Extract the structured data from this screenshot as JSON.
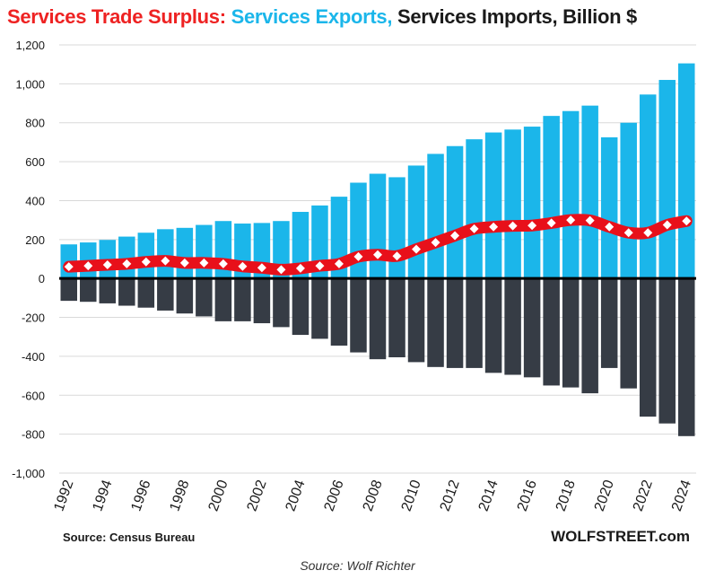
{
  "title": {
    "part1": "Services Trade Surplus: ",
    "part2": "Services Exports, ",
    "part3": "Services Imports, Billion $"
  },
  "source_label": "Source: Census Bureau",
  "brand": "WOLFSTREET.com",
  "caption": "Source: Wolf Richter",
  "colors": {
    "exports": "#1bb6ea",
    "imports": "#363c45",
    "surplus": "#e8101a",
    "marker": "#ffffff"
  },
  "chart_data": {
    "type": "bar",
    "title": "Services Trade Surplus: Services Exports, Services Imports, Billion $",
    "x": [
      1992,
      1993,
      1994,
      1995,
      1996,
      1997,
      1998,
      1999,
      2000,
      2001,
      2002,
      2003,
      2004,
      2005,
      2006,
      2007,
      2008,
      2009,
      2010,
      2011,
      2012,
      2013,
      2014,
      2015,
      2016,
      2017,
      2018,
      2019,
      2020,
      2021,
      2022,
      2023,
      2024
    ],
    "x_tick_labels": [
      "1992",
      "1994",
      "1996",
      "1998",
      "2000",
      "2002",
      "2004",
      "2006",
      "2008",
      "2010",
      "2012",
      "2014",
      "2016",
      "2018",
      "2020",
      "2022",
      "2024"
    ],
    "series": [
      {
        "name": "Services Exports",
        "type": "bar",
        "values": [
          175,
          185,
          198,
          215,
          235,
          253,
          260,
          275,
          295,
          282,
          285,
          295,
          342,
          375,
          420,
          492,
          538,
          520,
          580,
          640,
          680,
          715,
          750,
          765,
          780,
          835,
          860,
          888,
          725,
          800,
          945,
          1020,
          1105
        ]
      },
      {
        "name": "Services Imports",
        "type": "bar",
        "values": [
          -115,
          -120,
          -128,
          -140,
          -150,
          -165,
          -180,
          -195,
          -220,
          -220,
          -230,
          -250,
          -290,
          -310,
          -345,
          -380,
          -415,
          -405,
          -430,
          -455,
          -460,
          -460,
          -485,
          -495,
          -508,
          -550,
          -560,
          -590,
          -460,
          -565,
          -710,
          -745,
          -810
        ]
      },
      {
        "name": "Services Trade Surplus",
        "type": "line",
        "values": [
          60,
          65,
          70,
          75,
          85,
          90,
          80,
          80,
          75,
          62,
          55,
          45,
          52,
          65,
          75,
          112,
          122,
          115,
          150,
          185,
          220,
          255,
          265,
          270,
          272,
          285,
          300,
          298,
          265,
          235,
          235,
          275,
          295
        ]
      }
    ],
    "yticks": [
      1200,
      1000,
      800,
      600,
      400,
      200,
      0,
      -200,
      -400,
      -600,
      -800,
      -1000
    ],
    "ylim": [
      -1000,
      1200
    ],
    "grid": true
  }
}
